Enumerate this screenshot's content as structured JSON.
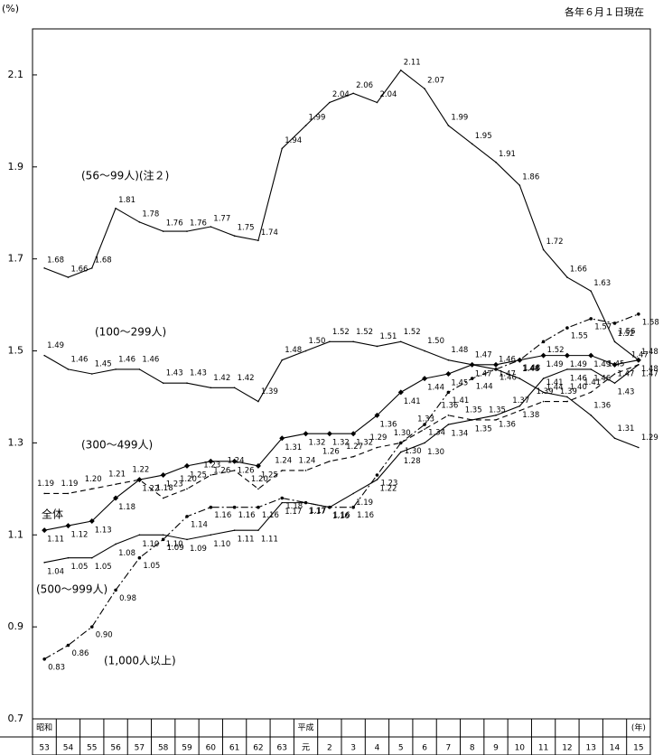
{
  "chart_data": {
    "type": "line",
    "title": "各年６月１日現在",
    "y_unit": "(%)",
    "categories": [
      "53",
      "54",
      "55",
      "56",
      "57",
      "58",
      "59",
      "60",
      "61",
      "62",
      "63",
      "元",
      "2",
      "3",
      "4",
      "5",
      "6",
      "7",
      "8",
      "9",
      "10",
      "11",
      "12",
      "13",
      "14",
      "15"
    ],
    "era_labels": [
      "昭和",
      null,
      null,
      null,
      null,
      null,
      null,
      null,
      null,
      null,
      null,
      "平成",
      null,
      null,
      null,
      null,
      null,
      null,
      null,
      null,
      null,
      null,
      null,
      null,
      null,
      "(年)"
    ],
    "ylim": [
      0.7,
      2.2
    ],
    "yticks": [
      0.7,
      0.9,
      1.1,
      1.3,
      1.5,
      1.7,
      1.9,
      2.1
    ],
    "series": [
      {
        "name": "(56～99人)(注２)",
        "color": "#000000",
        "dash": "solid",
        "marker": "none",
        "values": [
          1.68,
          1.66,
          1.68,
          1.81,
          1.78,
          1.76,
          1.76,
          1.77,
          1.75,
          1.74,
          1.94,
          1.99,
          2.04,
          2.06,
          2.04,
          2.11,
          2.07,
          1.99,
          1.95,
          1.91,
          1.86,
          1.72,
          1.66,
          1.63,
          1.52,
          1.48
        ],
        "value_labels": [
          "1.68",
          "1.66",
          "1.68",
          "1.81",
          "1.78",
          "1.76",
          "1.76",
          "1.77",
          "1.75",
          "1.74",
          "1.94",
          "1.99",
          "2.04",
          "2.06",
          "2.04",
          "2.11",
          "2.07",
          "1.99",
          "1.95",
          "1.91",
          "1.86",
          "1.72",
          "1.66",
          "1.63",
          "1.52",
          "1.48"
        ]
      },
      {
        "name": "(100～299人)",
        "color": "#000000",
        "dash": "solid",
        "marker": "none",
        "values": [
          1.49,
          1.46,
          1.45,
          1.46,
          1.46,
          1.43,
          1.43,
          1.42,
          1.42,
          1.39,
          1.48,
          1.5,
          1.52,
          1.52,
          1.51,
          1.52,
          1.5,
          1.48,
          1.47,
          1.46,
          1.44,
          1.41,
          1.4,
          1.36,
          1.31,
          1.29
        ],
        "value_labels": [
          "1.49",
          "1.46",
          "1.45",
          "1.46",
          "1.46",
          "1.43",
          "1.43",
          "1.42",
          "1.42",
          "1.39",
          "1.48",
          "1.50",
          "1.52",
          "1.52",
          "1.51",
          "1.52",
          "1.50",
          "1.48",
          "1.47",
          "1.46",
          "1.44",
          "1.41",
          "1.40",
          "1.36",
          "1.31",
          "1.29"
        ]
      },
      {
        "name": "(300～499人)",
        "color": "#000000",
        "dash": "dashed",
        "marker": "none",
        "values": [
          1.19,
          1.19,
          1.2,
          1.21,
          1.22,
          1.18,
          1.2,
          1.23,
          1.24,
          1.2,
          1.24,
          1.24,
          1.26,
          1.27,
          1.29,
          1.3,
          1.33,
          1.36,
          1.35,
          1.35,
          1.37,
          1.39,
          1.39,
          1.41,
          1.45,
          1.47
        ],
        "value_labels": [
          "1.19",
          "1.19",
          "1.20",
          "1.21",
          "1.22",
          "1.18",
          "1.20",
          "1.23",
          "1.24",
          "1.20",
          "1.24",
          "1.24",
          "1.26",
          "1.27",
          "1.29",
          "1.30",
          "1.33",
          "1.36",
          "1.35",
          "1.35",
          "1.37",
          "1.39",
          "1.39",
          "1.41",
          "1.45",
          "1.47"
        ]
      },
      {
        "name": "全体",
        "color": "#000000",
        "dash": "solid",
        "marker": "diamond",
        "values": [
          1.11,
          1.12,
          1.13,
          1.18,
          1.22,
          1.23,
          1.25,
          1.26,
          1.26,
          1.25,
          1.31,
          1.32,
          1.32,
          1.32,
          1.36,
          1.41,
          1.44,
          1.45,
          1.47,
          1.47,
          1.48,
          1.49,
          1.49,
          1.49,
          1.47,
          1.48
        ],
        "value_labels": [
          "1.11",
          "1.12",
          "1.13",
          "1.18",
          "1.22",
          "1.23",
          "1.25",
          "1.26",
          "1.26",
          "1.25",
          "1.31",
          "1.32",
          "1.32",
          "1.32",
          "1.36",
          "1.41",
          "1.44",
          "1.45",
          "1.47",
          "1.47",
          "1.48",
          "1.49",
          "1.49",
          "1.49",
          "1.47",
          "1.48"
        ]
      },
      {
        "name": "(500～999人)",
        "color": "#000000",
        "dash": "solid",
        "marker": "none",
        "values": [
          1.04,
          1.05,
          1.05,
          1.08,
          1.1,
          1.1,
          1.09,
          1.1,
          1.11,
          1.11,
          1.17,
          1.17,
          1.16,
          1.19,
          1.22,
          1.28,
          1.3,
          1.34,
          1.35,
          1.36,
          1.38,
          1.44,
          1.46,
          1.46,
          1.43,
          1.47
        ],
        "value_labels": [
          "1.04",
          "1.05",
          "1.05",
          "1.08",
          "1.10",
          "1.10",
          "1.09",
          "1.10",
          "1.11",
          "1.11",
          "1.17",
          "1.17",
          "1.16",
          "1.19",
          "1.22",
          "1.28",
          "1.30",
          "1.34",
          "1.35",
          "1.36",
          "1.38",
          "1.44",
          "1.46",
          "1.46",
          "1.43",
          "1.47"
        ]
      },
      {
        "name": "(1,000人以上)",
        "color": "#000000",
        "dash": "dashdot",
        "marker": "dot",
        "values": [
          0.83,
          0.86,
          0.9,
          0.98,
          1.05,
          1.09,
          1.14,
          1.16,
          1.16,
          1.16,
          1.18,
          1.17,
          1.16,
          1.16,
          1.23,
          1.3,
          1.34,
          1.41,
          1.44,
          1.46,
          1.48,
          1.52,
          1.55,
          1.57,
          1.56,
          1.58
        ],
        "value_labels": [
          "0.83",
          "0.86",
          "0.90",
          "0.98",
          "1.05",
          "1.09",
          "1.14",
          "1.16",
          "1.16",
          "1.16",
          "1.18",
          "1.17",
          "1.16",
          "1.16",
          "1.23",
          "1.30",
          "1.34",
          "1.41",
          "1.44",
          "1.46",
          "1.48",
          "1.52",
          "1.55",
          "1.57",
          "1.56",
          "1.58"
        ]
      }
    ]
  }
}
